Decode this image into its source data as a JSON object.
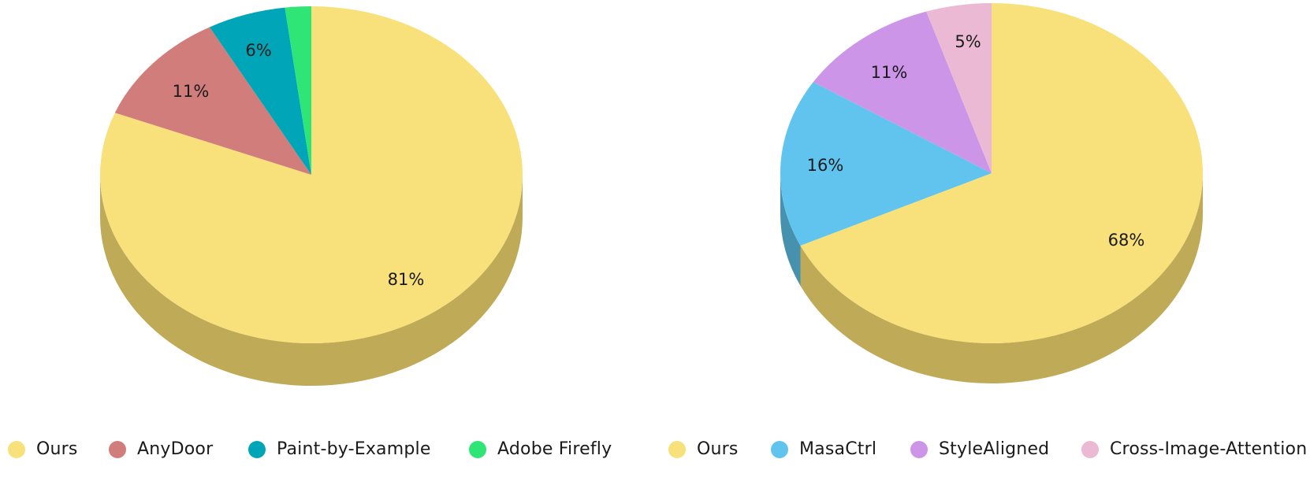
{
  "chart_data": [
    {
      "type": "pie",
      "title": "",
      "slices": [
        {
          "label": "Ours",
          "value": 81,
          "display": "81%",
          "color": "#F8E07A",
          "side": "#BFAA57"
        },
        {
          "label": "AnyDoor",
          "value": 11,
          "display": "11%",
          "color": "#D17D7B",
          "side": "#9E5E5C"
        },
        {
          "label": "Paint-by-Example",
          "value": 6,
          "display": "6%",
          "color": "#00A6B8",
          "side": "#007C8A"
        },
        {
          "label": "Adobe Firefly",
          "value": 2,
          "display": "",
          "color": "#2EE576",
          "side": "#22AC58"
        }
      ],
      "legend_placement": "bottom"
    },
    {
      "type": "pie",
      "title": "",
      "slices": [
        {
          "label": "Ours",
          "value": 68,
          "display": "68%",
          "color": "#F8E07A",
          "side": "#BFAA57"
        },
        {
          "label": "MasaCtrl",
          "value": 16,
          "display": "16%",
          "color": "#60C4EF",
          "side": "#4591AE"
        },
        {
          "label": "StyleAligned",
          "value": 11,
          "display": "11%",
          "color": "#CC95E8",
          "side": "#9A70AF"
        },
        {
          "label": "Cross-Image-Attention",
          "value": 5,
          "display": "5%",
          "color": "#EBB9D3",
          "side": "#B08BA0"
        }
      ],
      "legend_placement": "bottom"
    }
  ]
}
